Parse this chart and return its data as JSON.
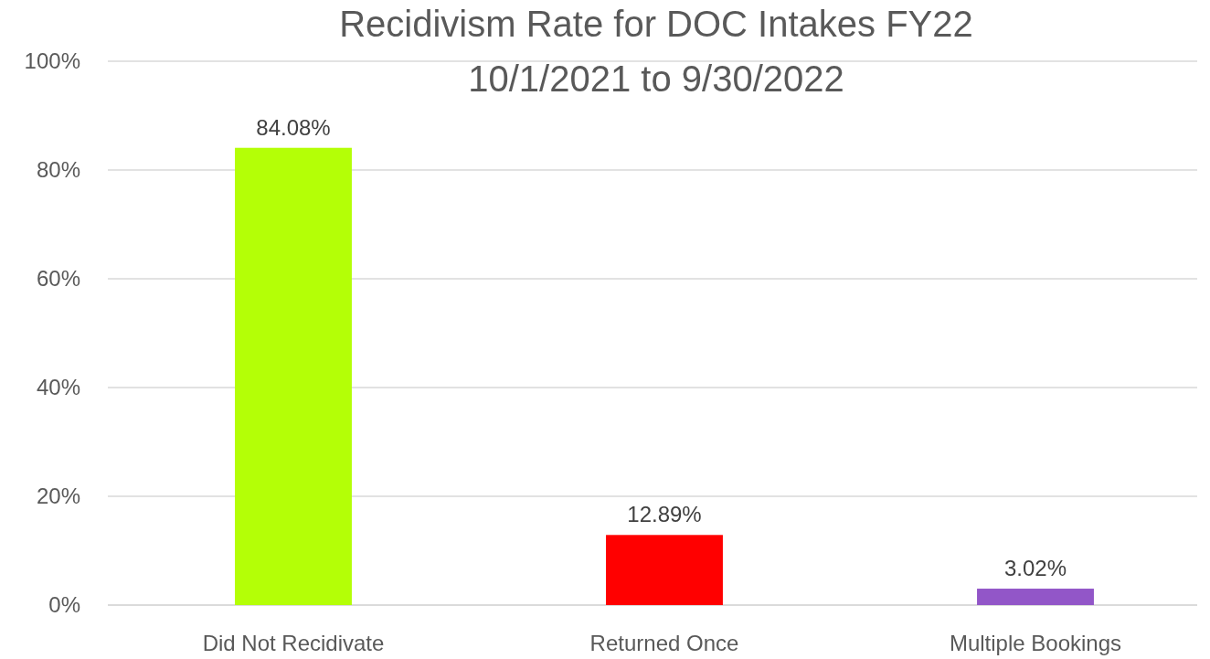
{
  "chart_data": {
    "type": "bar",
    "title": "Recidivism Rate for DOC Intakes FY22",
    "subtitle": "10/1/2021 to 9/30/2022",
    "categories": [
      "Did Not Recidivate",
      "Returned Once",
      "Multiple Bookings"
    ],
    "values": [
      84.08,
      12.89,
      3.02
    ],
    "colors": [
      "#b4ff06",
      "#ff0000",
      "#9256c8"
    ],
    "value_labels": [
      "84.08%",
      "12.89%",
      "3.02%"
    ],
    "ylim": [
      0,
      100
    ],
    "yticks": [
      {
        "value": 0,
        "label": "0%"
      },
      {
        "value": 20,
        "label": "20%"
      },
      {
        "value": 40,
        "label": "40%"
      },
      {
        "value": 60,
        "label": "60%"
      },
      {
        "value": 80,
        "label": "80%"
      },
      {
        "value": 100,
        "label": "100%"
      }
    ],
    "grid": "y"
  }
}
